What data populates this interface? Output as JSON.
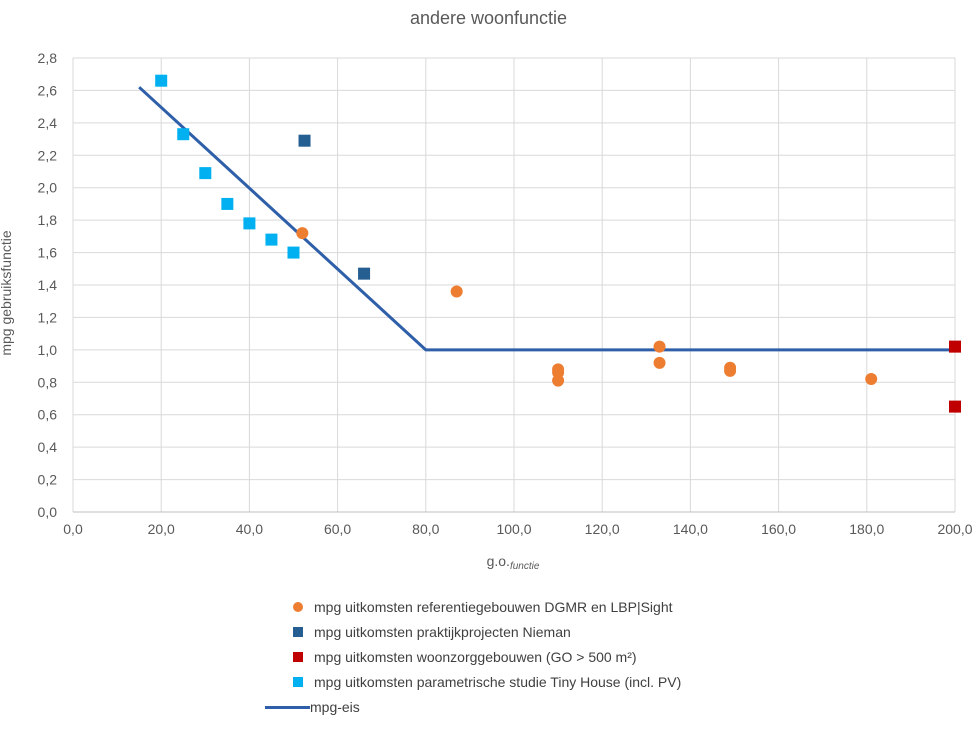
{
  "chart_data": {
    "type": "scatter",
    "title": "andere woonfunctie",
    "xlabel": "g.o.",
    "xlabel_subscript": "functie",
    "ylabel": "mpg gebruiksfunctie",
    "xlim": [
      0,
      200
    ],
    "ylim": [
      0,
      2.8
    ],
    "x_ticks": [
      "0,0",
      "20,0",
      "40,0",
      "60,0",
      "80,0",
      "100,0",
      "120,0",
      "140,0",
      "160,0",
      "180,0",
      "200,0"
    ],
    "y_ticks": [
      "0,0",
      "0,2",
      "0,4",
      "0,6",
      "0,8",
      "1,0",
      "1,2",
      "1,4",
      "1,6",
      "1,8",
      "2,0",
      "2,2",
      "2,4",
      "2,6",
      "2,8"
    ],
    "grid": true,
    "legend_position": "bottom",
    "series": [
      {
        "name": "mpg uitkomsten referentiegebouwen DGMR en LBP|Sight",
        "marker": "circle",
        "color": "#ED7D31",
        "points": [
          [
            52,
            1.72
          ],
          [
            87,
            1.36
          ],
          [
            110,
            0.88
          ],
          [
            110,
            0.86
          ],
          [
            110,
            0.81
          ],
          [
            133,
            1.02
          ],
          [
            133,
            0.92
          ],
          [
            149,
            0.89
          ],
          [
            149,
            0.87
          ],
          [
            181,
            0.82
          ]
        ]
      },
      {
        "name": "mpg uitkomsten praktijkprojecten Nieman",
        "marker": "square",
        "color": "#255E91",
        "points": [
          [
            52.5,
            2.29
          ],
          [
            66,
            1.47
          ]
        ]
      },
      {
        "name": "mpg uitkomsten woonzorggebouwen (GO > 500 m²)",
        "marker": "square",
        "color": "#C00000",
        "points": [
          [
            200,
            1.02
          ],
          [
            200,
            0.65
          ]
        ]
      },
      {
        "name": "mpg uitkomsten parametrische studie Tiny House (incl. PV)",
        "marker": "square",
        "color": "#00B0F0",
        "points": [
          [
            20,
            2.66
          ],
          [
            25,
            2.33
          ],
          [
            30,
            2.09
          ],
          [
            35,
            1.9
          ],
          [
            40,
            1.78
          ],
          [
            45,
            1.68
          ],
          [
            50,
            1.6
          ]
        ]
      },
      {
        "name": "mpg-eis",
        "marker": "line",
        "color": "#2E5FA8",
        "points": [
          [
            15,
            2.62
          ],
          [
            80,
            1.0
          ],
          [
            200,
            1.0
          ]
        ]
      }
    ]
  }
}
